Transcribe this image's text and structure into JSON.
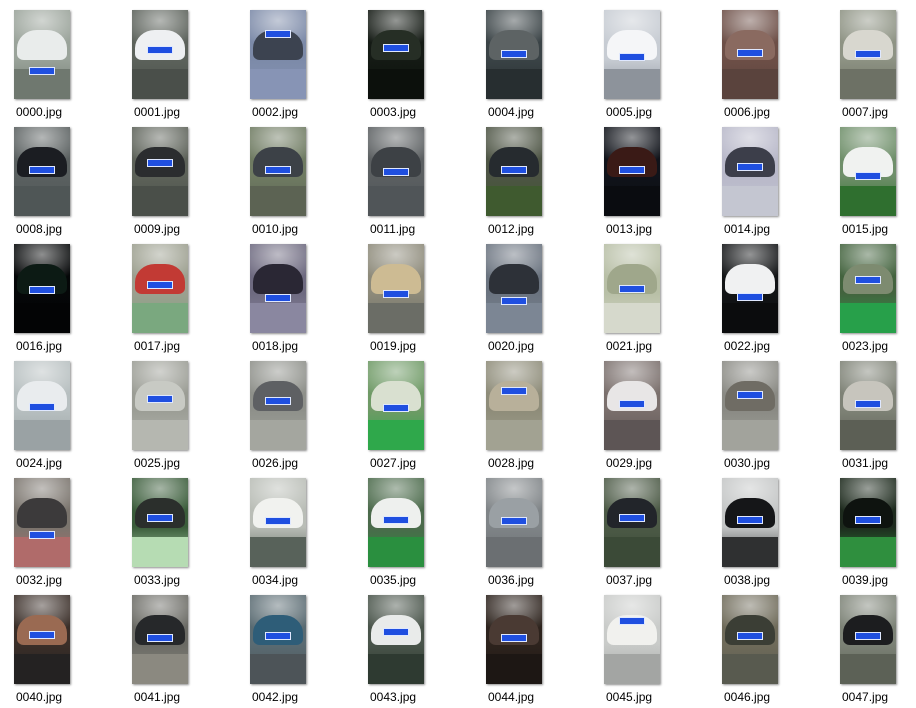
{
  "files": [
    {
      "name": "0000.jpg",
      "bg": "#9aa39a",
      "car": "#e9eceb",
      "ground": "#6f786f",
      "plate_y": 0.64
    },
    {
      "name": "0001.jpg",
      "bg": "#5c625b",
      "car": "#eef0f2",
      "ground": "#4a4f4a",
      "plate_y": 0.4
    },
    {
      "name": "0002.jpg",
      "bg": "#7c8aa8",
      "car": "#3c4350",
      "ground": "#8794b5",
      "plate_y": 0.22
    },
    {
      "name": "0003.jpg",
      "bg": "#141a14",
      "car": "#262e25",
      "ground": "#0c100c",
      "plate_y": 0.38
    },
    {
      "name": "0004.jpg",
      "bg": "#3a4346",
      "car": "#5d6364",
      "ground": "#272e30",
      "plate_y": 0.45
    },
    {
      "name": "0005.jpg",
      "bg": "#c7ccd3",
      "car": "#f5f6f8",
      "ground": "#8d939b",
      "plate_y": 0.48
    },
    {
      "name": "0006.jpg",
      "bg": "#6d4f47",
      "car": "#8a6a60",
      "ground": "#5a433d",
      "plate_y": 0.44
    },
    {
      "name": "0007.jpg",
      "bg": "#8e9384",
      "car": "#d8d7cf",
      "ground": "#6d7165",
      "plate_y": 0.45
    },
    {
      "name": "0008.jpg",
      "bg": "#5a6060",
      "car": "#1b1d22",
      "ground": "#4f5656",
      "plate_y": 0.44
    },
    {
      "name": "0009.jpg",
      "bg": "#5d6259",
      "car": "#2b2d2f",
      "ground": "#4a4f49",
      "plate_y": 0.36
    },
    {
      "name": "0010.jpg",
      "bg": "#6f7b62",
      "car": "#3c4147",
      "ground": "#5c6353",
      "plate_y": 0.44
    },
    {
      "name": "0011.jpg",
      "bg": "#5b5f61",
      "car": "#3d4145",
      "ground": "#505558",
      "plate_y": 0.46
    },
    {
      "name": "0012.jpg",
      "bg": "#4d5444",
      "car": "#262b2f",
      "ground": "#3f5a2f",
      "plate_y": 0.44
    },
    {
      "name": "0013.jpg",
      "bg": "#10131a",
      "car": "#3a1a16",
      "ground": "#0a0c10",
      "plate_y": 0.44
    },
    {
      "name": "0014.jpg",
      "bg": "#b8b8c9",
      "car": "#3c3e4a",
      "ground": "#c4c6d1",
      "plate_y": 0.4
    },
    {
      "name": "0015.jpg",
      "bg": "#6f8f6a",
      "car": "#f0f2f0",
      "ground": "#2f6f2f",
      "plate_y": 0.5
    },
    {
      "name": "0016.jpg",
      "bg": "#050708",
      "car": "#0c1a14",
      "ground": "#030405",
      "plate_y": 0.47
    },
    {
      "name": "0017.jpg",
      "bg": "#9c9f8f",
      "car": "#c23a34",
      "ground": "#7aa87f",
      "plate_y": 0.42
    },
    {
      "name": "0018.jpg",
      "bg": "#6e6a80",
      "car": "#2a2734",
      "ground": "#8a87a0",
      "plate_y": 0.56
    },
    {
      "name": "0019.jpg",
      "bg": "#8d8a7a",
      "car": "#cdbb93",
      "ground": "#6b6d66",
      "plate_y": 0.52
    },
    {
      "name": "0020.jpg",
      "bg": "#6a737f",
      "car": "#2d3138",
      "ground": "#7c8694",
      "plate_y": 0.6
    },
    {
      "name": "0021.jpg",
      "bg": "#b8bfa6",
      "car": "#9fa78b",
      "ground": "#d6d9cc",
      "plate_y": 0.46
    },
    {
      "name": "0022.jpg",
      "bg": "#121416",
      "car": "#f0f1f2",
      "ground": "#0b0c0d",
      "plate_y": 0.55
    },
    {
      "name": "0023.jpg",
      "bg": "#43633e",
      "car": "#7d8b70",
      "ground": "#27a04a",
      "plate_y": 0.36
    },
    {
      "name": "0024.jpg",
      "bg": "#b7bfc0",
      "car": "#e9ecee",
      "ground": "#9aa2a4",
      "plate_y": 0.47
    },
    {
      "name": "0025.jpg",
      "bg": "#9b9d95",
      "car": "#c8cac4",
      "ground": "#b5b7b0",
      "plate_y": 0.38
    },
    {
      "name": "0026.jpg",
      "bg": "#8e908a",
      "car": "#5e6063",
      "ground": "#a4a69f",
      "plate_y": 0.4
    },
    {
      "name": "0027.jpg",
      "bg": "#6f9a66",
      "car": "#d9e0d0",
      "ground": "#2fa84b",
      "plate_y": 0.48
    },
    {
      "name": "0028.jpg",
      "bg": "#8e8c79",
      "car": "#b8b09a",
      "ground": "#a2a292",
      "plate_y": 0.29
    },
    {
      "name": "0029.jpg",
      "bg": "#7a6f6c",
      "car": "#e8e6e6",
      "ground": "#5d5555",
      "plate_y": 0.44
    },
    {
      "name": "0030.jpg",
      "bg": "#8a8a84",
      "car": "#6f6c64",
      "ground": "#a2a39c",
      "plate_y": 0.34
    },
    {
      "name": "0031.jpg",
      "bg": "#7e8276",
      "car": "#c7c5bd",
      "ground": "#5c5f55",
      "plate_y": 0.44
    },
    {
      "name": "0032.jpg",
      "bg": "#7a746d",
      "car": "#3c3a3b",
      "ground": "#b06b6a",
      "plate_y": 0.6
    },
    {
      "name": "0033.jpg",
      "bg": "#3a5c3a",
      "car": "#2b2f2c",
      "ground": "#b6dcb3",
      "plate_y": 0.41
    },
    {
      "name": "0034.jpg",
      "bg": "#b9bdb6",
      "car": "#f1f2ef",
      "ground": "#58625a",
      "plate_y": 0.44
    },
    {
      "name": "0035.jpg",
      "bg": "#4b6a4b",
      "car": "#eef0ee",
      "ground": "#2a8f3f",
      "plate_y": 0.43
    },
    {
      "name": "0036.jpg",
      "bg": "#7f8487",
      "car": "#9aa0a4",
      "ground": "#6b6f72",
      "plate_y": 0.44
    },
    {
      "name": "0037.jpg",
      "bg": "#4c5a46",
      "car": "#22252a",
      "ground": "#3b4a37",
      "plate_y": 0.4
    },
    {
      "name": "0038.jpg",
      "bg": "#c4c6c6",
      "car": "#151618",
      "ground": "#2f3031",
      "plate_y": 0.43
    },
    {
      "name": "0039.jpg",
      "bg": "#1d2a1d",
      "car": "#0e130f",
      "ground": "#2f8f3e",
      "plate_y": 0.43
    },
    {
      "name": "0040.jpg",
      "bg": "#3a2e28",
      "car": "#9a6a52",
      "ground": "#242222",
      "plate_y": 0.4
    },
    {
      "name": "0041.jpg",
      "bg": "#6a6a64",
      "car": "#26282a",
      "ground": "#8b8980",
      "plate_y": 0.44
    },
    {
      "name": "0042.jpg",
      "bg": "#5a6b72",
      "car": "#2e5d78",
      "ground": "#4d5458",
      "plate_y": 0.42
    },
    {
      "name": "0043.jpg",
      "bg": "#49544a",
      "car": "#e9ebea",
      "ground": "#2e3a31",
      "plate_y": 0.37
    },
    {
      "name": "0044.jpg",
      "bg": "#2d231d",
      "car": "#4a3a33",
      "ground": "#1d1714",
      "plate_y": 0.44
    },
    {
      "name": "0045.jpg",
      "bg": "#c9cbc9",
      "car": "#f1f1ee",
      "ground": "#a3a5a3",
      "plate_y": 0.25
    },
    {
      "name": "0046.jpg",
      "bg": "#6f6b5a",
      "car": "#3b3e35",
      "ground": "#585a4f",
      "plate_y": 0.42
    },
    {
      "name": "0047.jpg",
      "bg": "#7c8276",
      "car": "#1c1d1f",
      "ground": "#5c6156",
      "plate_y": 0.42
    }
  ]
}
